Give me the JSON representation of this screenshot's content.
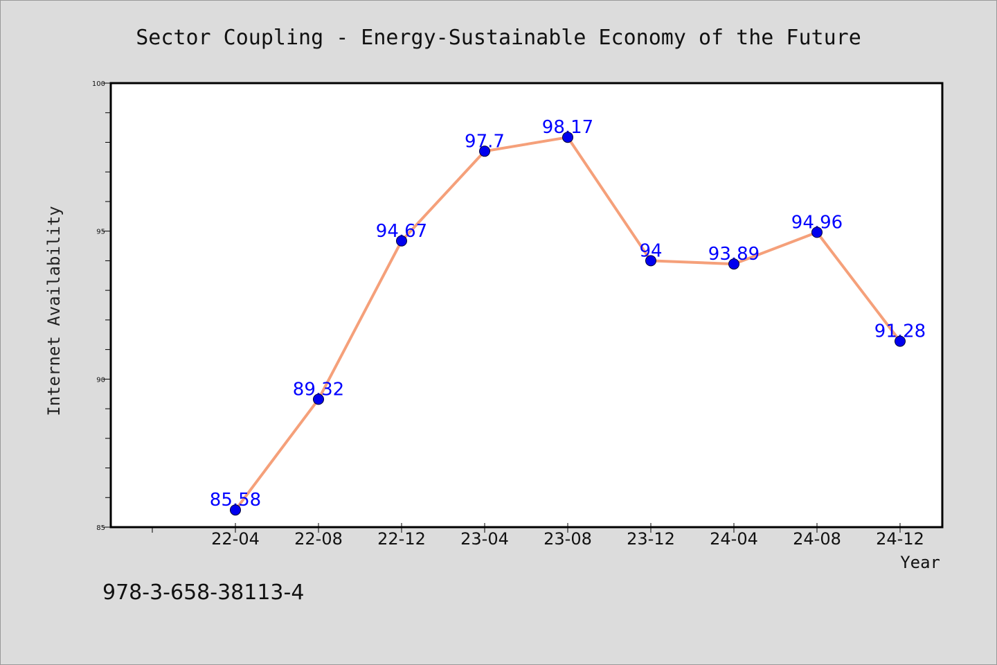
{
  "chart_data": {
    "type": "line",
    "title": "Sector Coupling - Energy-Sustainable Economy of the Future",
    "xlabel": "Year",
    "ylabel": "Internet Availability",
    "categories": [
      "22-04",
      "22-08",
      "22-12",
      "23-04",
      "23-08",
      "23-12",
      "24-04",
      "24-08",
      "24-12"
    ],
    "values": [
      85.58,
      89.32,
      94.67,
      97.7,
      98.17,
      94,
      93.89,
      94.96,
      91.28
    ],
    "data_labels": [
      "85.58",
      "89.32",
      "94.67",
      "97.7",
      "98.17",
      "94",
      "93.89",
      "94.96",
      "91.28"
    ],
    "ylim": [
      85,
      100
    ],
    "yticks": [
      "85",
      "90",
      "95",
      "100"
    ],
    "grid": false,
    "line_color": "#f5a07a",
    "marker_color": "#0000ee",
    "label_color": "#0000ff"
  },
  "footer": {
    "isbn": "978-3-658-38113-4"
  }
}
